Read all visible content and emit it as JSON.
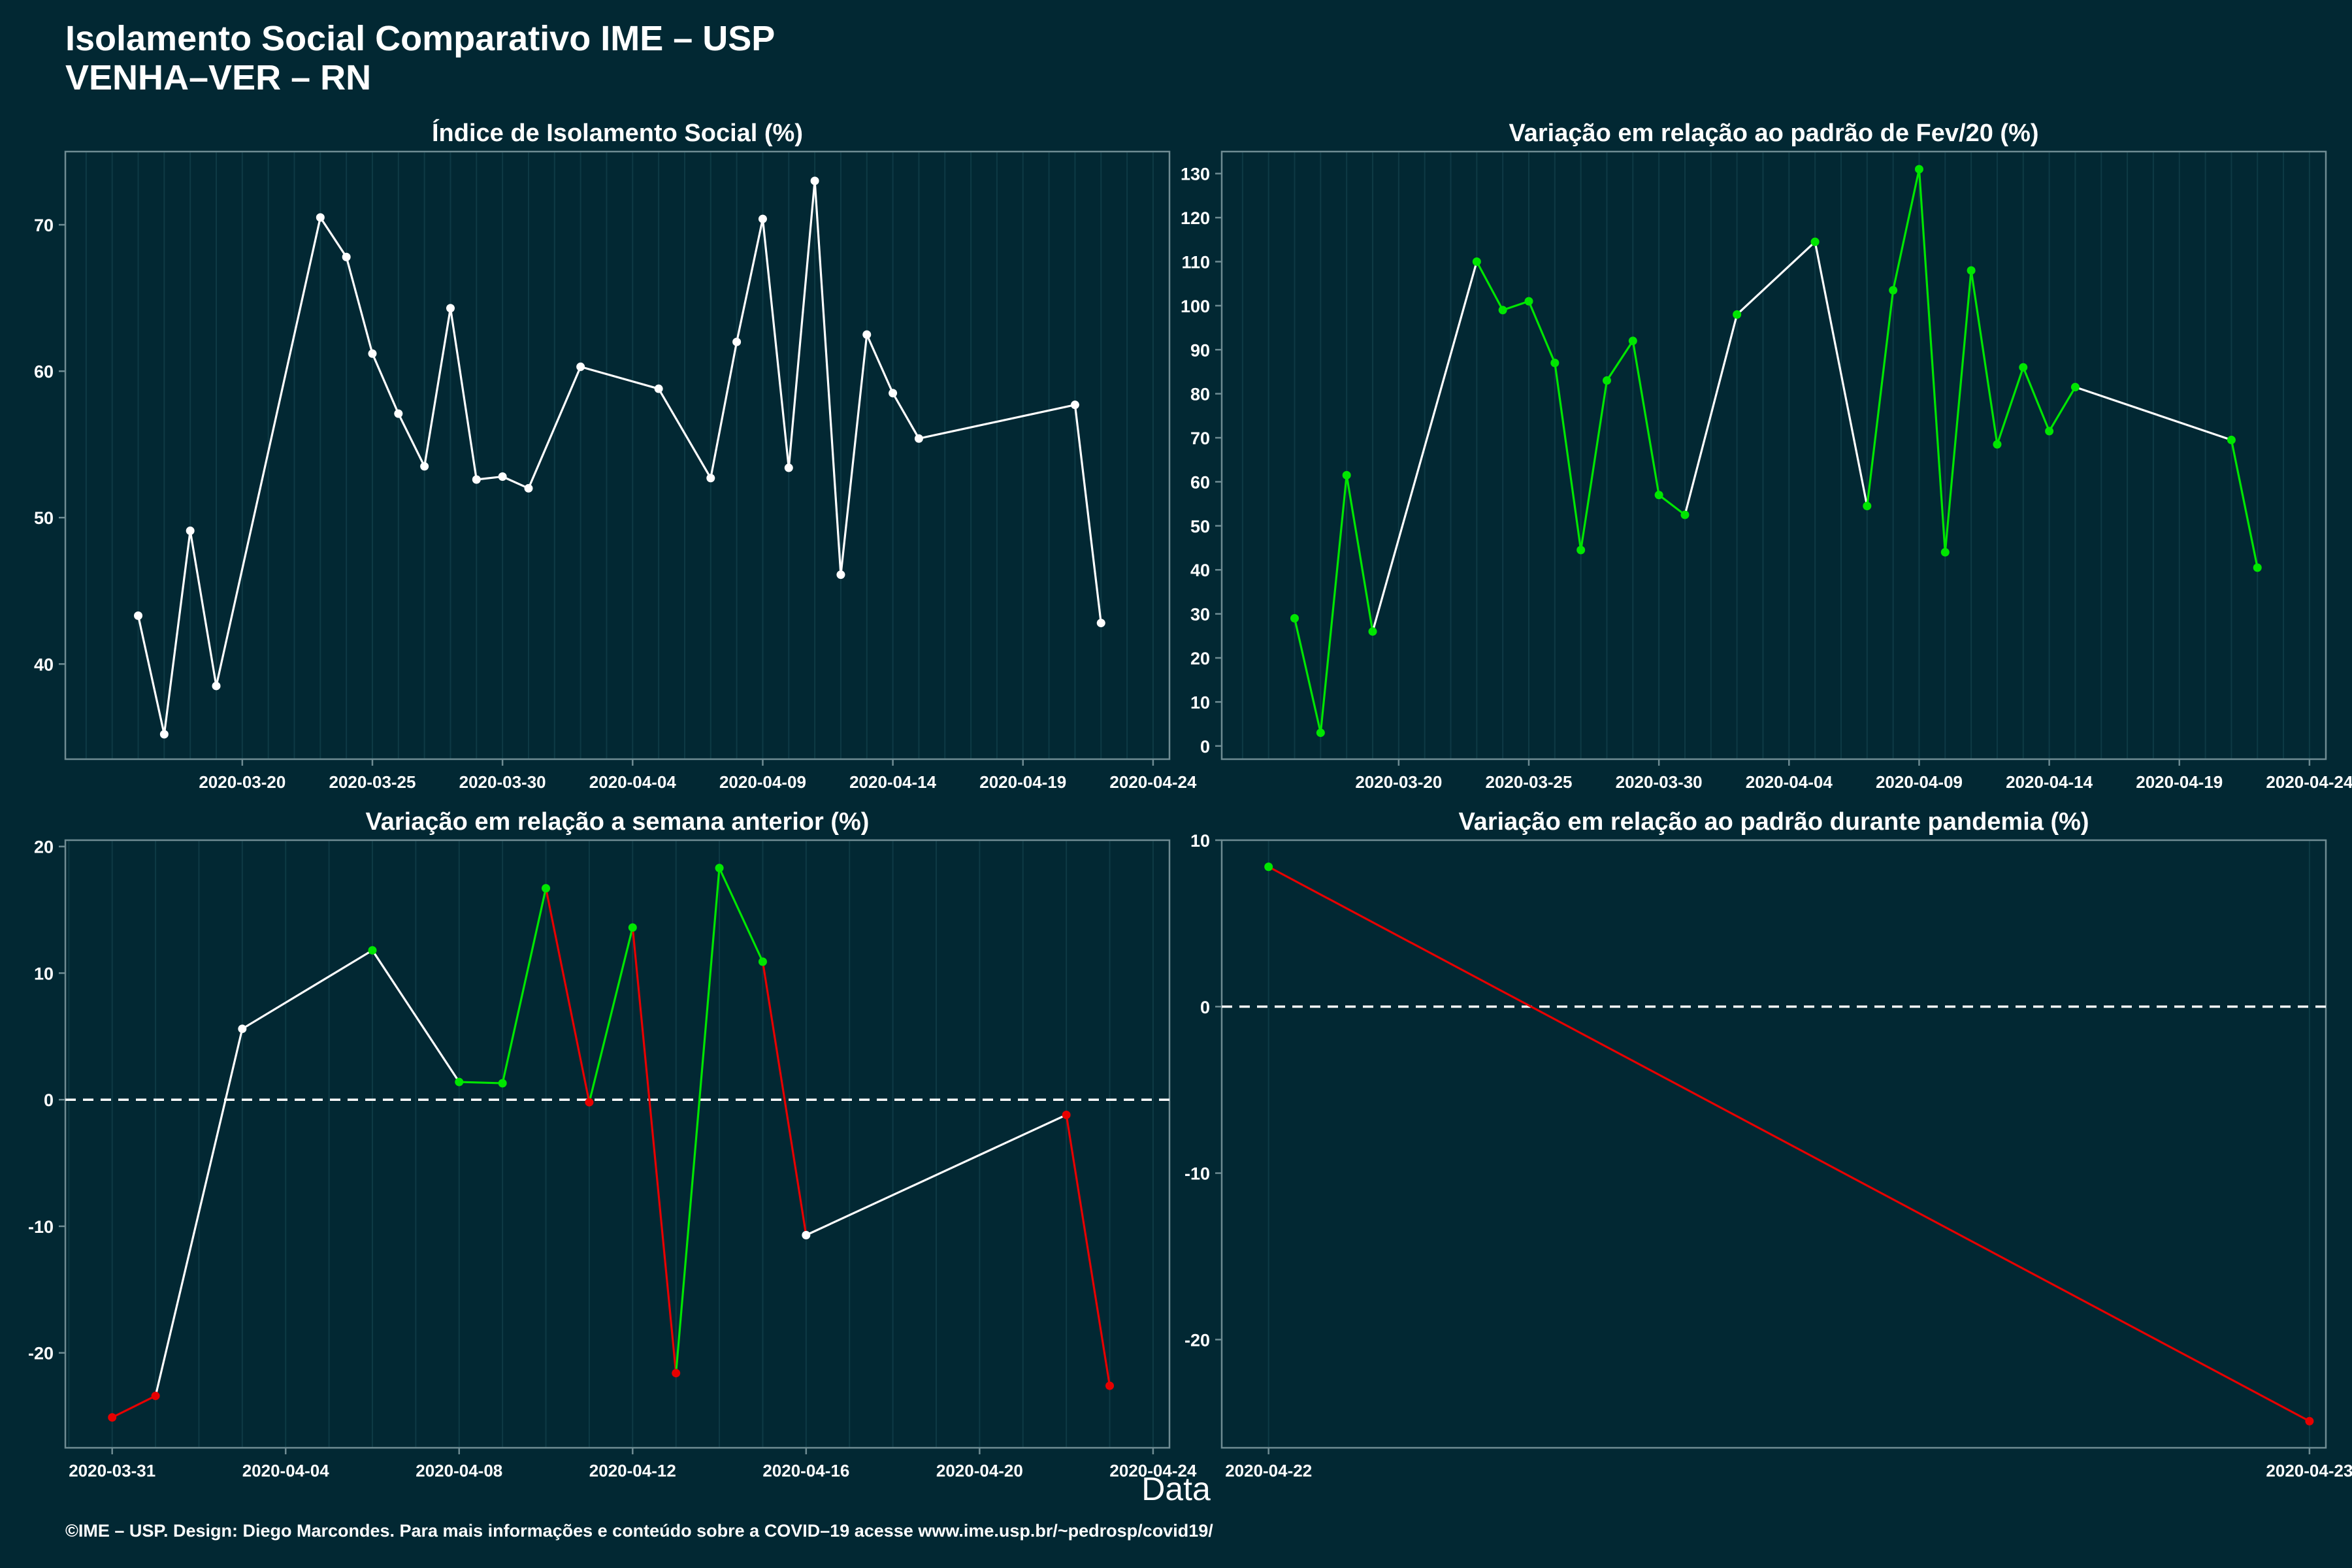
{
  "title": "Isolamento Social Comparativo IME – USP",
  "subtitle": "VENHA–VER – RN",
  "xlabel": "Data",
  "footer": "©IME – USP. Design: Diego Marcondes. Para mais informações e conteúdo sobre a COVID–19 acesse www.ime.usp.br/~pedrosp/covid19/",
  "colors": {
    "background": "#022833",
    "white": "#ffffff",
    "green": "#00e600",
    "red": "#e60000",
    "grid": "#0e3a45",
    "border": "#6f8c93"
  },
  "chart_data": [
    {
      "type": "line",
      "title": "Índice de Isolamento Social (%)",
      "x": [
        "2020-03-16",
        "2020-03-17",
        "2020-03-18",
        "2020-03-19",
        "2020-03-23",
        "2020-03-24",
        "2020-03-25",
        "2020-03-26",
        "2020-03-27",
        "2020-03-28",
        "2020-03-29",
        "2020-03-30",
        "2020-03-31",
        "2020-04-02",
        "2020-04-05",
        "2020-04-07",
        "2020-04-08",
        "2020-04-09",
        "2020-04-10",
        "2020-04-11",
        "2020-04-12",
        "2020-04-13",
        "2020-04-14",
        "2020-04-15",
        "2020-04-21",
        "2020-04-22"
      ],
      "y": [
        43.3,
        35.2,
        49.1,
        38.5,
        70.5,
        67.8,
        61.2,
        57.1,
        53.5,
        64.3,
        52.6,
        52.8,
        52.0,
        60.3,
        58.8,
        52.7,
        62.0,
        70.4,
        53.4,
        73.0,
        46.1,
        62.5,
        58.5,
        55.4,
        57.7,
        42.8
      ],
      "segment_colors": [],
      "xlim": [
        "2020-03-15",
        "2020-04-24"
      ],
      "ylim": [
        33.5,
        75
      ],
      "yticks": [
        40,
        50,
        60,
        70
      ],
      "xticks": [
        "2020-03-20",
        "2020-03-25",
        "2020-03-30",
        "2020-04-04",
        "2020-04-09",
        "2020-04-14",
        "2020-04-19",
        "2020-04-24"
      ],
      "hline": null
    },
    {
      "type": "line",
      "title": "Variação em relação ao padrão de Fev/20 (%)",
      "x": [
        "2020-03-16",
        "2020-03-17",
        "2020-03-18",
        "2020-03-19",
        "2020-03-23",
        "2020-03-24",
        "2020-03-25",
        "2020-03-26",
        "2020-03-27",
        "2020-03-28",
        "2020-03-29",
        "2020-03-30",
        "2020-03-31",
        "2020-04-02",
        "2020-04-05",
        "2020-04-07",
        "2020-04-08",
        "2020-04-09",
        "2020-04-10",
        "2020-04-11",
        "2020-04-12",
        "2020-04-13",
        "2020-04-14",
        "2020-04-15",
        "2020-04-21",
        "2020-04-22"
      ],
      "y": [
        29,
        3,
        61.5,
        26,
        110,
        99,
        101,
        87,
        44.5,
        83,
        92,
        57,
        52.5,
        98,
        114.5,
        54.5,
        103.5,
        131,
        44,
        108,
        68.5,
        86,
        71.5,
        81.5,
        69.5,
        40.5
      ],
      "segment_colors": [
        "g",
        "g",
        "g",
        "w",
        "g",
        "g",
        "g",
        "g",
        "g",
        "g",
        "g",
        "g",
        "w",
        "w",
        "w",
        "g",
        "g",
        "g",
        "g",
        "g",
        "g",
        "g",
        "g",
        "w",
        "g"
      ],
      "point_color": "g",
      "xlim": [
        "2020-03-15",
        "2020-04-24"
      ],
      "ylim": [
        -3,
        135
      ],
      "yticks": [
        0,
        10,
        20,
        30,
        40,
        50,
        60,
        70,
        80,
        90,
        100,
        110,
        120,
        130
      ],
      "xticks": [
        "2020-03-20",
        "2020-03-25",
        "2020-03-30",
        "2020-04-04",
        "2020-04-09",
        "2020-04-14",
        "2020-04-19",
        "2020-04-24"
      ],
      "hline": null
    },
    {
      "type": "line",
      "title": "Variação em relação a semana anterior (%)",
      "x": [
        "2020-03-31",
        "2020-04-01",
        "2020-04-03",
        "2020-04-06",
        "2020-04-08",
        "2020-04-09",
        "2020-04-10",
        "2020-04-11",
        "2020-04-12",
        "2020-04-13",
        "2020-04-14",
        "2020-04-15",
        "2020-04-16",
        "2020-04-22",
        "2020-04-23"
      ],
      "y": [
        -25.1,
        -23.4,
        5.6,
        11.8,
        1.4,
        1.3,
        16.7,
        -0.2,
        13.6,
        -21.6,
        18.3,
        10.9,
        -10.7,
        -1.2,
        -22.6
      ],
      "point_colors": [
        "r",
        "r",
        "w",
        "g",
        "g",
        "g",
        "g",
        "r",
        "g",
        "r",
        "g",
        "g",
        "w",
        "r",
        "r"
      ],
      "segment_colors": [
        "r",
        "w",
        "w",
        "w",
        "g",
        "g",
        "r",
        "g",
        "r",
        "g",
        "g",
        "r",
        "w",
        "r"
      ],
      "xlim": [
        "2020-03-31",
        "2020-04-24"
      ],
      "ylim": [
        -27.5,
        20.5
      ],
      "yticks": [
        -20,
        -10,
        0,
        10,
        20
      ],
      "xticks": [
        "2020-03-31",
        "2020-04-04",
        "2020-04-08",
        "2020-04-12",
        "2020-04-16",
        "2020-04-20",
        "2020-04-24"
      ],
      "hline": 0
    },
    {
      "type": "line",
      "title": "Variação em relação ao padrão durante pandemia (%)",
      "x": [
        "2020-04-22",
        "2020-04-23"
      ],
      "y": [
        8.4,
        -24.9
      ],
      "point_colors": [
        "g",
        "r"
      ],
      "segment_colors": [
        "r"
      ],
      "xlim": [
        "2020-04-22",
        "2020-04-23"
      ],
      "ylim": [
        -26.5,
        10
      ],
      "yticks": [
        -20,
        -10,
        0,
        10
      ],
      "xticks": [
        "2020-04-22",
        "2020-04-23"
      ],
      "hline": 0
    }
  ]
}
